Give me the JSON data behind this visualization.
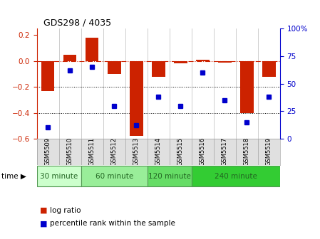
{
  "title": "GDS298 / 4035",
  "samples": [
    "GSM5509",
    "GSM5510",
    "GSM5511",
    "GSM5512",
    "GSM5513",
    "GSM5514",
    "GSM5515",
    "GSM5516",
    "GSM5517",
    "GSM5518",
    "GSM5519"
  ],
  "log_ratio": [
    -0.23,
    0.05,
    0.18,
    -0.1,
    -0.58,
    -0.12,
    -0.02,
    0.01,
    -0.01,
    -0.4,
    -0.12
  ],
  "percentile": [
    10,
    62,
    65,
    30,
    12,
    38,
    30,
    60,
    35,
    15,
    38
  ],
  "bar_color": "#cc2200",
  "dot_color": "#0000cc",
  "hline_color": "#cc2200",
  "dotline_color": "black",
  "ylim_left": [
    -0.6,
    0.25
  ],
  "ylim_right": [
    0,
    100
  ],
  "yticks_left": [
    -0.6,
    -0.4,
    -0.2,
    0.0,
    0.2
  ],
  "yticks_right": [
    0,
    25,
    50,
    75,
    100
  ],
  "ytick_labels_right": [
    "0",
    "25",
    "50",
    "75",
    "100%"
  ],
  "time_groups": [
    {
      "label": "30 minute",
      "start": 0,
      "end": 1,
      "color": "#ccffcc"
    },
    {
      "label": "60 minute",
      "start": 2,
      "end": 4,
      "color": "#99ee99"
    },
    {
      "label": "120 minute",
      "start": 5,
      "end": 6,
      "color": "#66dd66"
    },
    {
      "label": "240 minute",
      "start": 7,
      "end": 10,
      "color": "#33cc33"
    }
  ],
  "bg_color": "#e0e0e0",
  "plot_bg": "#ffffff",
  "legend_log_ratio": "log ratio",
  "legend_percentile": "percentile rank within the sample",
  "time_label": "time"
}
